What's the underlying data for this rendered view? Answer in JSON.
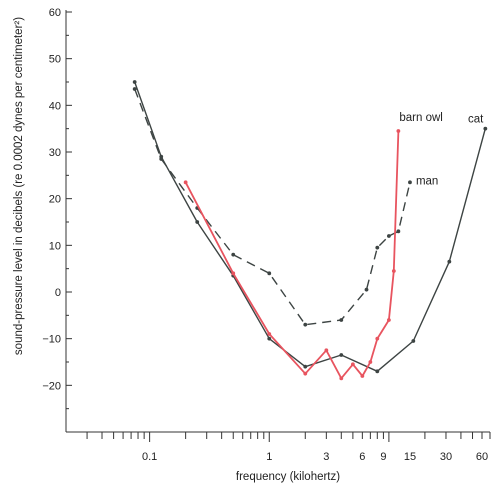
{
  "chart_data": {
    "type": "line",
    "xscale": "log",
    "xlabel": "frequency (kilohertz)",
    "ylabel": "sound-pressure level in decibels (re 0.0002 dynes per centimeter²)",
    "xlim": [
      0.02,
      70
    ],
    "ylim": [
      -30,
      60
    ],
    "yticks": [
      60,
      50,
      40,
      30,
      20,
      10,
      0,
      -10,
      -20
    ],
    "xticks_labeled": [
      {
        "value": 0.1,
        "label": "0.1"
      },
      {
        "value": 1,
        "label": "1"
      },
      {
        "value": 3,
        "label": "3"
      },
      {
        "value": 6,
        "label": "6"
      },
      {
        "value": 9,
        "label": "9"
      },
      {
        "value": 15,
        "label": "15"
      },
      {
        "value": 30,
        "label": "30"
      },
      {
        "value": 60,
        "label": "60"
      }
    ],
    "series": [
      {
        "name": "cat",
        "color": "#3d4443",
        "dash": "solid",
        "points": [
          {
            "x": 0.075,
            "y": 45
          },
          {
            "x": 0.125,
            "y": 29
          },
          {
            "x": 0.25,
            "y": 15
          },
          {
            "x": 0.5,
            "y": 3.5
          },
          {
            "x": 1,
            "y": -10
          },
          {
            "x": 2,
            "y": -16
          },
          {
            "x": 4,
            "y": -13.5
          },
          {
            "x": 8,
            "y": -17
          },
          {
            "x": 16,
            "y": -10.5
          },
          {
            "x": 32,
            "y": 6.5
          },
          {
            "x": 64,
            "y": 35
          }
        ]
      },
      {
        "name": "man",
        "color": "#3d4443",
        "dash": "dashed",
        "points": [
          {
            "x": 0.075,
            "y": 43.5
          },
          {
            "x": 0.125,
            "y": 28.5
          },
          {
            "x": 0.25,
            "y": 18
          },
          {
            "x": 0.5,
            "y": 8
          },
          {
            "x": 1,
            "y": 4
          },
          {
            "x": 2,
            "y": -7
          },
          {
            "x": 4,
            "y": -6
          },
          {
            "x": 6.5,
            "y": 0.5
          },
          {
            "x": 8,
            "y": 9.5
          },
          {
            "x": 10,
            "y": 12
          },
          {
            "x": 12,
            "y": 13
          },
          {
            "x": 15,
            "y": 23.5
          }
        ]
      },
      {
        "name": "barn owl",
        "color": "#e8545f",
        "dash": "solid",
        "points": [
          {
            "x": 0.2,
            "y": 23.5
          },
          {
            "x": 0.5,
            "y": 4
          },
          {
            "x": 1,
            "y": -9
          },
          {
            "x": 2,
            "y": -17.5
          },
          {
            "x": 3,
            "y": -12.5
          },
          {
            "x": 4,
            "y": -18.5
          },
          {
            "x": 5,
            "y": -15.5
          },
          {
            "x": 6,
            "y": -18
          },
          {
            "x": 7,
            "y": -15
          },
          {
            "x": 8,
            "y": -10
          },
          {
            "x": 10,
            "y": -6
          },
          {
            "x": 11,
            "y": 4.5
          },
          {
            "x": 12,
            "y": 34.5
          }
        ]
      }
    ],
    "annotations": [
      {
        "text": "barn owl",
        "series": "barn owl"
      },
      {
        "text": "man",
        "series": "man"
      },
      {
        "text": "cat",
        "series": "cat"
      }
    ]
  }
}
